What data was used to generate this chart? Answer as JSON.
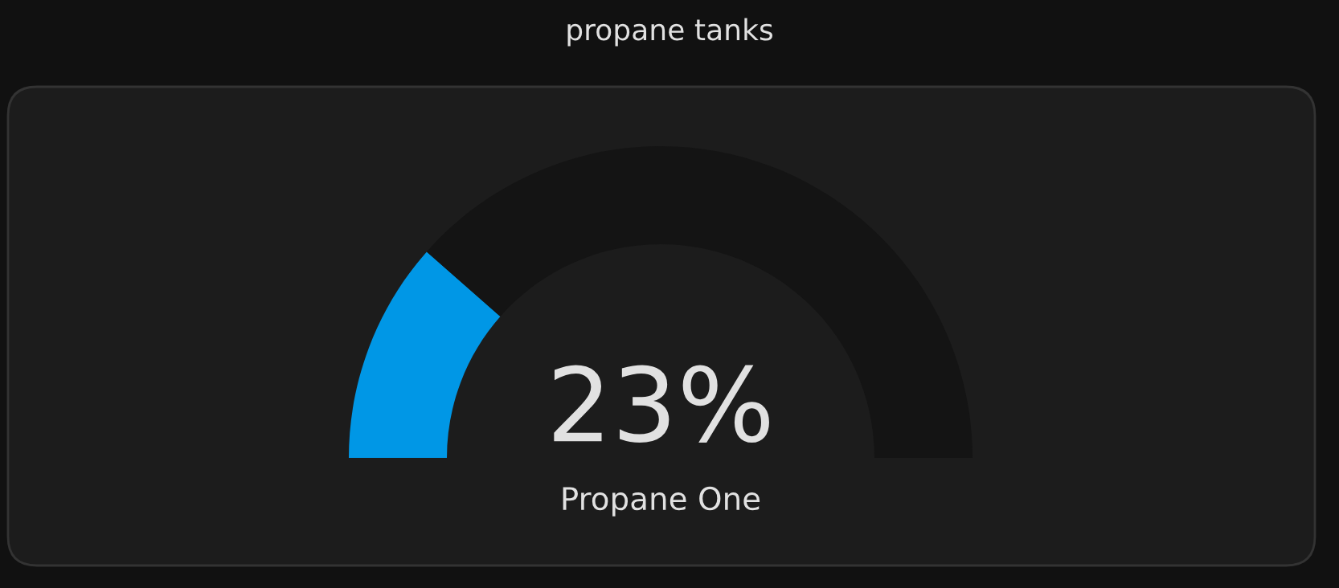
{
  "chart_data": {
    "type": "donut",
    "title": "propane tanks",
    "categories": [
      null,
      null
    ],
    "annotations": [
      "23%",
      "Propane One"
    ],
    "values": [
      23,
      77
    ],
    "colors": [
      "#0097e6",
      "#141414"
    ]
  }
}
